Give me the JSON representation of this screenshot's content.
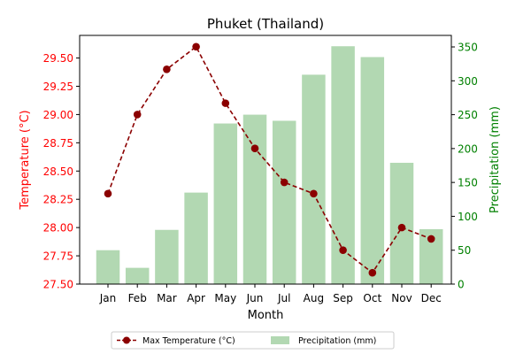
{
  "chart_data": {
    "type": "bar+line",
    "title": "Phuket (Thailand)",
    "xlabel": "Month",
    "ylabel_left": "Temperature (°C)",
    "ylabel_right": "Precipitation (mm)",
    "categories": [
      "Jan",
      "Feb",
      "Mar",
      "Apr",
      "May",
      "Jun",
      "Jul",
      "Aug",
      "Sep",
      "Oct",
      "Nov",
      "Dec"
    ],
    "ylim_left": [
      27.5,
      29.7
    ],
    "ylim_right": [
      0,
      367
    ],
    "yticks_left": [
      "27.50",
      "27.75",
      "28.00",
      "28.25",
      "28.50",
      "28.75",
      "29.00",
      "29.25",
      "29.50"
    ],
    "yticks_right": [
      "0",
      "50",
      "100",
      "150",
      "200",
      "250",
      "300",
      "350"
    ],
    "grid": false,
    "legend_position": "bottom-center",
    "series": [
      {
        "name": "Max Temperature (°C)",
        "type": "line",
        "axis": "left",
        "color": "#8b0000",
        "values": [
          28.3,
          29.0,
          29.4,
          29.6,
          29.1,
          28.7,
          28.4,
          28.3,
          27.8,
          27.6,
          28.0,
          27.9
        ]
      },
      {
        "name": "Precipitation (mm)",
        "type": "bar",
        "axis": "right",
        "color": "#b2d8b2",
        "values": [
          50,
          24,
          80,
          135,
          237,
          250,
          241,
          309,
          351,
          335,
          179,
          81
        ]
      }
    ],
    "colors": {
      "left_axis": "#ff0000",
      "right_axis": "#008000"
    }
  }
}
